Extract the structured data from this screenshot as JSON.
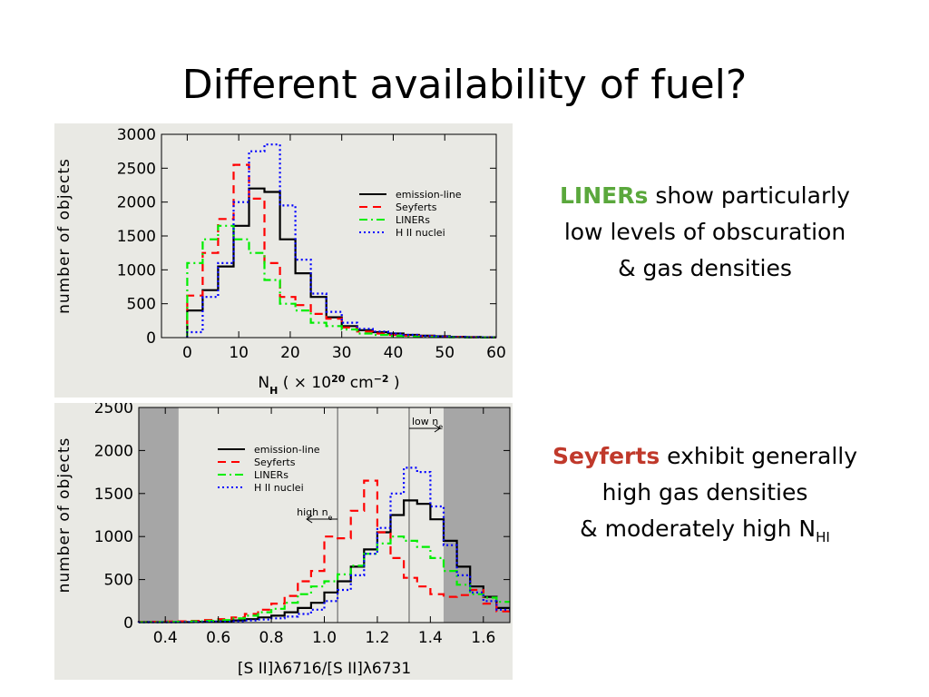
{
  "title": "Different availability of fuel?",
  "notes": {
    "top": {
      "keyword": "LINERs",
      "line1_rest": " show particularly",
      "line2": "low levels of  obscuration",
      "line3": "& gas densities"
    },
    "bottom": {
      "keyword": "Seyferts",
      "line1_rest": " exhibit generally",
      "line2": "high gas densities",
      "line3_prefix": "& moderately high N",
      "line3_sub": "HI"
    }
  },
  "series_styles": [
    {
      "name": "emission-line",
      "color": "#000000",
      "dash": "solid"
    },
    {
      "name": "Seyferts",
      "color": "#ff0000",
      "dash": "dashed"
    },
    {
      "name": "LINERs",
      "color": "#00ee00",
      "dash": "dash-dot"
    },
    {
      "name": "H II nuclei",
      "color": "#0000ff",
      "dash": "dotted"
    }
  ],
  "chart_data": [
    {
      "type": "histogram",
      "ylabel": "number of objects",
      "xlabel": {
        "base": "N",
        "sub": "H",
        "rest": " ( ×  10",
        "sup1": "20",
        "unit": " cm",
        "sup2": "−2",
        "close": ")"
      },
      "xlim": [
        -5,
        60
      ],
      "ylim": [
        0,
        3000
      ],
      "xticks": [
        "0",
        "10",
        "20",
        "30",
        "40",
        "50",
        "60"
      ],
      "yticks": [
        "0",
        "500",
        "1000",
        "1500",
        "2000",
        "2500",
        "3000"
      ],
      "legend_position": "top-right",
      "edges": [
        0,
        3,
        6,
        9,
        12,
        15,
        18,
        21,
        24,
        27,
        30,
        33,
        36,
        39,
        42,
        45,
        48,
        51,
        54,
        57,
        60
      ],
      "series": [
        {
          "name": "emission-line",
          "values": [
            400,
            700,
            1050,
            1650,
            2200,
            2150,
            1450,
            950,
            600,
            300,
            170,
            110,
            80,
            60,
            40,
            30,
            20,
            12,
            8,
            5
          ]
        },
        {
          "name": "Seyferts",
          "values": [
            620,
            1250,
            1750,
            2550,
            2050,
            1100,
            600,
            480,
            350,
            280,
            150,
            90,
            60,
            40,
            30,
            20,
            12,
            8,
            5,
            3
          ]
        },
        {
          "name": "LINERs",
          "values": [
            1100,
            1450,
            1650,
            1450,
            1250,
            850,
            500,
            400,
            220,
            170,
            120,
            60,
            40,
            25,
            15,
            10,
            8,
            5,
            3,
            2
          ]
        },
        {
          "name": "H II nuclei",
          "values": [
            80,
            600,
            1100,
            2000,
            2750,
            2850,
            1950,
            1150,
            650,
            380,
            220,
            130,
            90,
            60,
            40,
            25,
            15,
            10,
            6,
            4
          ]
        }
      ]
    },
    {
      "type": "histogram",
      "ylabel": "number of objects",
      "xlabel": "[S II]λ6716/[S II]λ6731",
      "xlim": [
        0.3,
        1.7
      ],
      "ylim": [
        0,
        2500
      ],
      "xticks": [
        "0.4",
        "0.6",
        "0.8",
        "1.0",
        "1.2",
        "1.4",
        "1.6"
      ],
      "yticks": [
        "0",
        "500",
        "1000",
        "1500",
        "2000",
        "2500"
      ],
      "legend_position": "top-left",
      "shaded_ranges": [
        [
          0.3,
          0.45
        ],
        [
          1.45,
          1.7
        ]
      ],
      "vlines": [
        1.05,
        1.32
      ],
      "annotations": [
        {
          "text": "high n",
          "sub": "e",
          "x": 1.05,
          "direction": "left"
        },
        {
          "text": "low n",
          "sub": "e",
          "x": 1.32,
          "direction": "right"
        }
      ],
      "edges": [
        0.3,
        0.35,
        0.4,
        0.45,
        0.5,
        0.55,
        0.6,
        0.65,
        0.7,
        0.75,
        0.8,
        0.85,
        0.9,
        0.95,
        1.0,
        1.05,
        1.1,
        1.15,
        1.2,
        1.25,
        1.3,
        1.35,
        1.4,
        1.45,
        1.5,
        1.55,
        1.6,
        1.65,
        1.7
      ],
      "series": [
        {
          "name": "emission-line",
          "values": [
            5,
            5,
            5,
            5,
            10,
            12,
            15,
            25,
            40,
            60,
            80,
            120,
            170,
            230,
            350,
            480,
            650,
            850,
            1050,
            1250,
            1420,
            1380,
            1200,
            950,
            650,
            420,
            300,
            170
          ]
        },
        {
          "name": "Seyferts",
          "values": [
            10,
            10,
            12,
            15,
            20,
            30,
            40,
            60,
            100,
            150,
            220,
            310,
            480,
            600,
            1000,
            980,
            1300,
            1650,
            1050,
            750,
            520,
            420,
            330,
            300,
            320,
            380,
            220,
            130
          ]
        },
        {
          "name": "LINERs",
          "values": [
            5,
            5,
            8,
            10,
            15,
            20,
            30,
            50,
            80,
            120,
            160,
            230,
            330,
            420,
            480,
            560,
            660,
            800,
            920,
            1000,
            950,
            880,
            750,
            600,
            440,
            330,
            290,
            240
          ]
        },
        {
          "name": "H II nuclei",
          "values": [
            3,
            3,
            3,
            5,
            5,
            8,
            10,
            15,
            25,
            35,
            50,
            70,
            100,
            150,
            250,
            380,
            550,
            800,
            1100,
            1500,
            1800,
            1750,
            1350,
            900,
            550,
            350,
            250,
            150
          ]
        }
      ]
    }
  ]
}
